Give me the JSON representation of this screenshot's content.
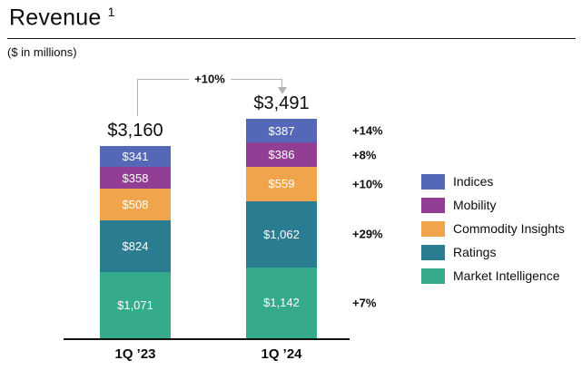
{
  "header": {
    "title": "Revenue",
    "footnote_marker": "1",
    "units_note": "($ in millions)"
  },
  "chart_data": {
    "type": "bar",
    "variant": "stacked-column",
    "title": "Revenue",
    "units": "$ in millions",
    "categories": [
      "1Q ’23",
      "1Q ’24"
    ],
    "series": [
      {
        "name": "Indices",
        "color": "#5468B7",
        "values": [
          341,
          387
        ],
        "value_labels": [
          "$341",
          "$387"
        ],
        "yoy_change": "+14%"
      },
      {
        "name": "Mobility",
        "color": "#913E94",
        "values": [
          358,
          386
        ],
        "value_labels": [
          "$358",
          "$386"
        ],
        "yoy_change": "+8%"
      },
      {
        "name": "Commodity Insights",
        "color": "#F0A54C",
        "values": [
          508,
          559
        ],
        "value_labels": [
          "$508",
          "$559"
        ],
        "yoy_change": "+10%"
      },
      {
        "name": "Ratings",
        "color": "#2A7D90",
        "values": [
          824,
          1062
        ],
        "value_labels": [
          "$824",
          "$1,062"
        ],
        "yoy_change": "+29%"
      },
      {
        "name": "Market Intelligence",
        "color": "#35AB8C",
        "values": [
          1071,
          1142
        ],
        "value_labels": [
          "$1,071",
          "$1,142"
        ],
        "yoy_change": "+7%"
      }
    ],
    "totals": [
      3160,
      3491
    ],
    "total_labels": [
      "$3,160",
      "$3,491"
    ],
    "total_yoy_change": "+10%",
    "legend_position": "right",
    "grid": "off",
    "stack_order_top_to_bottom": true
  }
}
